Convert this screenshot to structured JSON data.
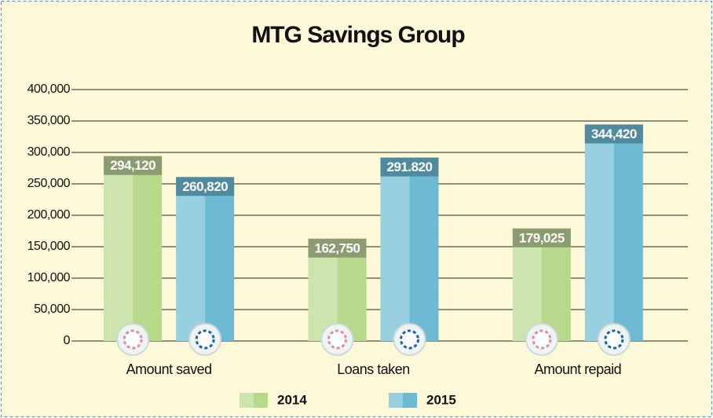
{
  "chart_data": {
    "type": "bar",
    "title": "MTG Savings Group",
    "categories": [
      "Amount saved",
      "Loans taken",
      "Amount repaid"
    ],
    "series": [
      {
        "name": "2014",
        "color": "#b6d98b",
        "values": [
          294120,
          162750,
          179025
        ],
        "value_labels": [
          "294,120",
          "162,750",
          "179,025"
        ],
        "label_color": "#8b9c70"
      },
      {
        "name": "2015",
        "color": "#6cbad4",
        "values": [
          260820,
          291820,
          344420
        ],
        "value_labels": [
          "260,820",
          "291.820",
          "344,420"
        ],
        "label_color": "#4f8a9e"
      }
    ],
    "ylim": [
      0,
      400000
    ],
    "yticks": [
      0,
      {
        "value": 50000,
        "label": "50,000"
      },
      {
        "value": 100000,
        "label": "100,000"
      },
      {
        "value": 150000,
        "label": "150,000"
      },
      {
        "value": 200000,
        "label": "200,000"
      },
      {
        "value": 250000,
        "label": "250,000"
      },
      {
        "value": 300000,
        "label": "300,000"
      },
      {
        "value": 350000,
        "label": "350,000"
      },
      {
        "value": 400000,
        "label": "400,000"
      }
    ],
    "grid": true
  }
}
